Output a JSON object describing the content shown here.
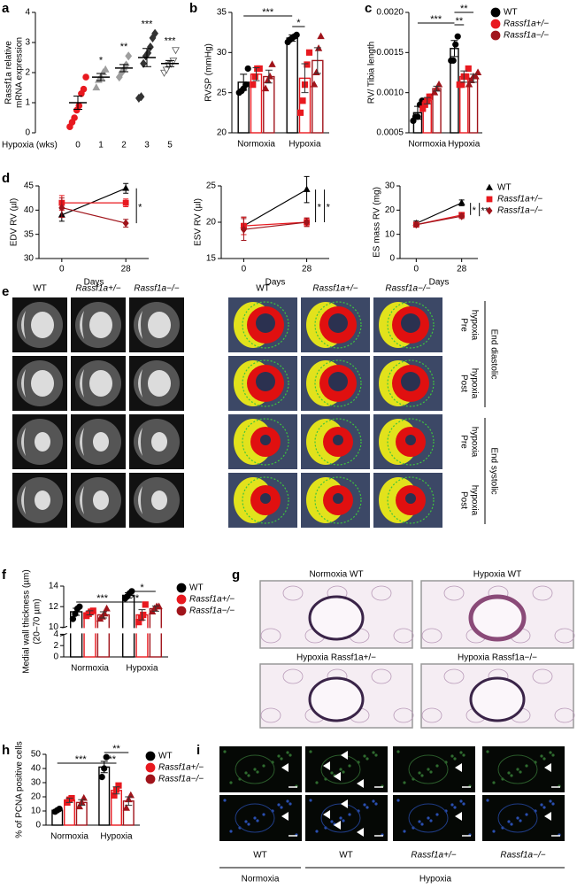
{
  "panel_labels": [
    "a",
    "b",
    "c",
    "d",
    "e",
    "f",
    "g",
    "h",
    "i"
  ],
  "chart_data": [
    {
      "type": "dot",
      "ylabel": [
        "Rassf1a relative",
        "mRNA expression"
      ],
      "xlabel": "Hypoxia (wks)",
      "categories": [
        "0",
        "1",
        "2",
        "3",
        "5"
      ],
      "values": [
        1.0,
        1.85,
        2.15,
        2.5,
        2.3
      ],
      "errors": [
        0.22,
        0.12,
        0.12,
        0.3,
        0.1
      ],
      "points": [
        [
          0.2,
          0.35,
          0.5,
          0.75,
          0.9,
          1.3,
          1.45,
          1.85
        ],
        [
          1.5,
          1.75,
          1.85,
          2.0,
          2.1
        ],
        [
          1.85,
          2.0,
          2.1,
          2.25,
          2.55
        ],
        [
          1.15,
          1.2,
          2.3,
          2.55,
          2.65,
          2.85,
          3.15,
          3.3
        ],
        [
          2.0,
          2.1,
          2.25,
          2.3,
          2.4,
          2.75
        ]
      ],
      "colors": [
        "#e8191f",
        "#9e9e9e",
        "#9e9e9e",
        "#333333",
        "#ffffff"
      ],
      "markers": [
        "circle",
        "triangle",
        "diamond",
        "diamond",
        "triangle-down"
      ],
      "annotations": [
        null,
        "*",
        "**",
        "***",
        "***"
      ],
      "ylim": [
        0,
        4
      ],
      "yticks": [
        0,
        1,
        2,
        3,
        4
      ]
    },
    {
      "type": "bar",
      "ylabel": [
        "RVSP (mmHg)"
      ],
      "categories": [
        "Normoxia",
        "Hypoxia"
      ],
      "series": [
        {
          "name": "WT",
          "color": "#000000",
          "marker": "circle",
          "values": [
            26.3,
            31.8
          ],
          "errors": [
            1.0,
            0.4
          ],
          "points": [
            [
              25.0,
              25.2,
              25.5,
              26.0,
              28.0
            ],
            [
              31.3,
              31.6,
              31.8,
              32.0,
              32.2
            ]
          ]
        },
        {
          "name": "Rassf1a+/−",
          "color": "#e8191f",
          "marker": "square",
          "values": [
            27.3,
            26.8
          ],
          "errors": [
            0.8,
            1.8
          ],
          "points": [
            [
              26.0,
              27.0,
              28.0,
              28.0
            ],
            [
              22.5,
              24.0,
              26.0,
              28.5,
              30.0
            ]
          ]
        },
        {
          "name": "Rassf1a−/−",
          "color": "#a0141b",
          "marker": "triangle",
          "values": [
            27.0,
            29.0
          ],
          "errors": [
            0.8,
            1.6
          ],
          "points": [
            [
              25.5,
              26.5,
              27.0,
              28.5
            ],
            [
              26.0,
              27.5,
              30.5,
              32.0
            ]
          ]
        }
      ],
      "annotations": [
        "***",
        "*"
      ],
      "ylim": [
        20,
        35
      ],
      "yticks": [
        20,
        25,
        30,
        35
      ]
    },
    {
      "type": "bar",
      "ylabel": [
        "RV/ Tibia length"
      ],
      "categories": [
        "Normoxia",
        "Hypoxia"
      ],
      "legend": "right",
      "series": [
        {
          "name": "WT",
          "color": "#000000",
          "marker": "circle",
          "values": [
            0.00075,
            0.00155
          ],
          "errors": [
            8e-05,
            0.0001
          ],
          "points": [
            [
              0.00065,
              0.0007,
              0.0007,
              0.00085,
              0.0009
            ],
            [
              0.0014,
              0.0014,
              0.0016,
              0.0017
            ]
          ]
        },
        {
          "name": "Rassf1a+/−",
          "color": "#e8191f",
          "marker": "square",
          "values": [
            0.0009,
            0.0012
          ],
          "errors": [
            4e-05,
            7e-05
          ],
          "points": [
            [
              0.0008,
              0.00085,
              0.0009,
              0.00095,
              0.00095
            ],
            [
              0.0011,
              0.0011,
              0.0012,
              0.0012,
              0.0013
            ]
          ]
        },
        {
          "name": "Rassf1a−/−",
          "color": "#a0141b",
          "marker": "triangle",
          "values": [
            0.00105,
            0.00118
          ],
          "errors": [
            3e-05,
            5e-05
          ],
          "points": [
            [
              0.001,
              0.00105,
              0.0011
            ],
            [
              0.0011,
              0.00115,
              0.0012,
              0.0012,
              0.00125
            ]
          ]
        }
      ],
      "annotations": [
        "***",
        "**",
        "**"
      ],
      "ylim": [
        0.0005,
        0.002
      ],
      "yticks": [
        {
          "value": 0.0005,
          "label": "0.0005"
        },
        {
          "value": 0.001,
          "label": "0.0010"
        },
        {
          "value": 0.0015,
          "label": "0.0015"
        },
        {
          "value": 0.002,
          "label": "0.0020"
        }
      ]
    },
    {
      "type": "line",
      "ylabel": [
        "EDV RV (µl)"
      ],
      "xlabel": "Days",
      "x": [
        0,
        28
      ],
      "xlim": [
        -10,
        38
      ],
      "xticks": [
        0,
        28
      ],
      "series": [
        {
          "name": "WT",
          "color": "#000000",
          "marker": "triangle",
          "values": [
            39.0,
            44.5
          ],
          "errors": [
            1.3,
            1.0
          ]
        },
        {
          "name": "Rassf1a+/−",
          "color": "#e8191f",
          "marker": "square",
          "values": [
            41.5,
            41.5
          ],
          "errors": [
            1.5,
            0.8
          ]
        },
        {
          "name": "Rassf1a−/−",
          "color": "#a0141b",
          "marker": "diamond",
          "values": [
            40.5,
            37.3
          ],
          "errors": [
            2.0,
            0.8
          ]
        }
      ],
      "annotations": [
        "*"
      ],
      "ylim": [
        30,
        45
      ],
      "yticks": [
        30,
        35,
        40,
        45
      ]
    },
    {
      "type": "line",
      "ylabel": [
        "ESV RV (µl)"
      ],
      "xlabel": "Days",
      "x": [
        0,
        28
      ],
      "xlim": [
        -10,
        38
      ],
      "xticks": [
        0,
        28
      ],
      "series": [
        {
          "name": "WT",
          "color": "#000000",
          "marker": "triangle",
          "values": [
            19.5,
            24.5
          ],
          "errors": [
            1.2,
            1.8
          ]
        },
        {
          "name": "Rassf1a+/−",
          "color": "#e8191f",
          "marker": "square",
          "values": [
            19.5,
            20.0
          ],
          "errors": [
            1.2,
            0.5
          ]
        },
        {
          "name": "Rassf1a−/−",
          "color": "#a0141b",
          "marker": "diamond",
          "values": [
            19.0,
            20.0
          ],
          "errors": [
            1.5,
            0.6
          ]
        }
      ],
      "annotations": [
        "*",
        "*"
      ],
      "ylim": [
        15,
        25
      ],
      "yticks": [
        15,
        20,
        25
      ]
    },
    {
      "type": "line",
      "ylabel": [
        "ES mass RV (mg)"
      ],
      "xlabel": "Days",
      "x": [
        0,
        28
      ],
      "xlim": [
        -10,
        38
      ],
      "xticks": [
        0,
        28
      ],
      "legend": "right",
      "series": [
        {
          "name": "WT",
          "color": "#000000",
          "marker": "triangle",
          "values": [
            14.5,
            23.0
          ],
          "errors": [
            1.0,
            1.2
          ]
        },
        {
          "name": "Rassf1a+/−",
          "color": "#e8191f",
          "marker": "square",
          "values": [
            14.0,
            18.0
          ],
          "errors": [
            1.0,
            1.0
          ]
        },
        {
          "name": "Rassf1a−/−",
          "color": "#a0141b",
          "marker": "diamond",
          "values": [
            14.0,
            17.5
          ],
          "errors": [
            1.0,
            1.0
          ]
        }
      ],
      "annotations": [
        "*",
        "**"
      ],
      "ylim": [
        0,
        30
      ],
      "yticks": [
        0,
        10,
        20,
        30
      ]
    },
    {
      "type": "bar",
      "ylabel": [
        "Medial wall thickness (µm)",
        "(20–70 µm)"
      ],
      "categories": [
        "Normoxia",
        "Hypoxia"
      ],
      "legend": "right",
      "series": [
        {
          "name": "WT",
          "color": "#000000",
          "marker": "circle",
          "values": [
            11.5,
            13.1
          ],
          "errors": [
            0.35,
            0.25
          ],
          "points": [
            [
              10.8,
              11.3,
              11.8,
              12.0
            ],
            [
              12.8,
              13.0,
              13.3,
              13.5
            ]
          ]
        },
        {
          "name": "Rassf1a+/−",
          "color": "#e8191f",
          "marker": "square",
          "values": [
            11.4,
            11.2
          ],
          "errors": [
            0.2,
            0.5
          ],
          "points": [
            [
              11.1,
              11.3,
              11.5,
              11.6
            ],
            [
              10.5,
              10.9,
              11.2,
              12.2
            ]
          ]
        },
        {
          "name": "Rassf1a−/−",
          "color": "#a0141b",
          "marker": "triangle",
          "values": [
            11.2,
            11.8
          ],
          "errors": [
            0.3,
            0.25
          ],
          "points": [
            [
              10.8,
              11.0,
              11.3,
              11.8
            ],
            [
              11.5,
              11.8,
              12.0,
              12.0
            ]
          ]
        }
      ],
      "annotations": [
        "***",
        "**",
        "*"
      ],
      "ylim": [
        0,
        14
      ],
      "yticks": [
        0,
        2,
        4,
        10,
        12,
        14
      ]
    },
    {
      "type": "bar",
      "ylabel": [
        "% of PCNA positive cells"
      ],
      "categories": [
        "Normoxia",
        "Hypoxia"
      ],
      "legend": "right",
      "series": [
        {
          "name": "WT",
          "color": "#000000",
          "marker": "circle",
          "values": [
            10.5,
            41.0
          ],
          "errors": [
            0.7,
            4.0
          ],
          "points": [
            [
              9.5,
              10.5,
              11.5
            ],
            [
              34.0,
              40.0,
              48.0
            ]
          ]
        },
        {
          "name": "Rassf1a+/−",
          "color": "#e8191f",
          "marker": "square",
          "values": [
            17.5,
            24.5
          ],
          "errors": [
            1.5,
            2.5
          ],
          "points": [
            [
              16.0,
              18.0,
              19.0
            ],
            [
              21.0,
              25.0,
              28.0
            ]
          ]
        },
        {
          "name": "Rassf1a−/−",
          "color": "#a0141b",
          "marker": "triangle",
          "values": [
            16.0,
            17.0
          ],
          "errors": [
            2.0,
            3.0
          ],
          "points": [
            [
              13.0,
              16.0,
              19.0
            ],
            [
              12.0,
              18.0,
              21.0
            ]
          ]
        }
      ],
      "annotations": [
        "***",
        "**",
        "***"
      ],
      "ylim": [
        0,
        50
      ],
      "yticks": [
        0,
        10,
        20,
        30,
        40,
        50
      ]
    }
  ],
  "mri_panel": {
    "mri_column_labels": [
      "WT",
      "Rassf1a+/−",
      "Rassf1a−/−"
    ],
    "render_column_labels": [
      "WT",
      "Rassf1a+/−",
      "Rassf1a−/−"
    ],
    "row_labels": [
      [
        "Pre",
        "hypoxia"
      ],
      [
        "Post",
        "hypoxia"
      ],
      [
        "Pre",
        "hypoxia"
      ],
      [
        "Post",
        "hypoxia"
      ]
    ],
    "phase_labels": [
      "End diastolic",
      "End systolic"
    ]
  },
  "histology_panel": {
    "labels": [
      "Normoxia WT",
      "Hypoxia WT",
      "Hypoxia Rassf1a+/−",
      "Hypoxia Rassf1a−/−"
    ]
  },
  "pcna_panel": {
    "column_labels": [
      "WT",
      "WT",
      "Rassf1a+/−",
      "Rassf1a−/−"
    ],
    "condition_labels": [
      "Normoxia",
      "Hypoxia"
    ]
  }
}
